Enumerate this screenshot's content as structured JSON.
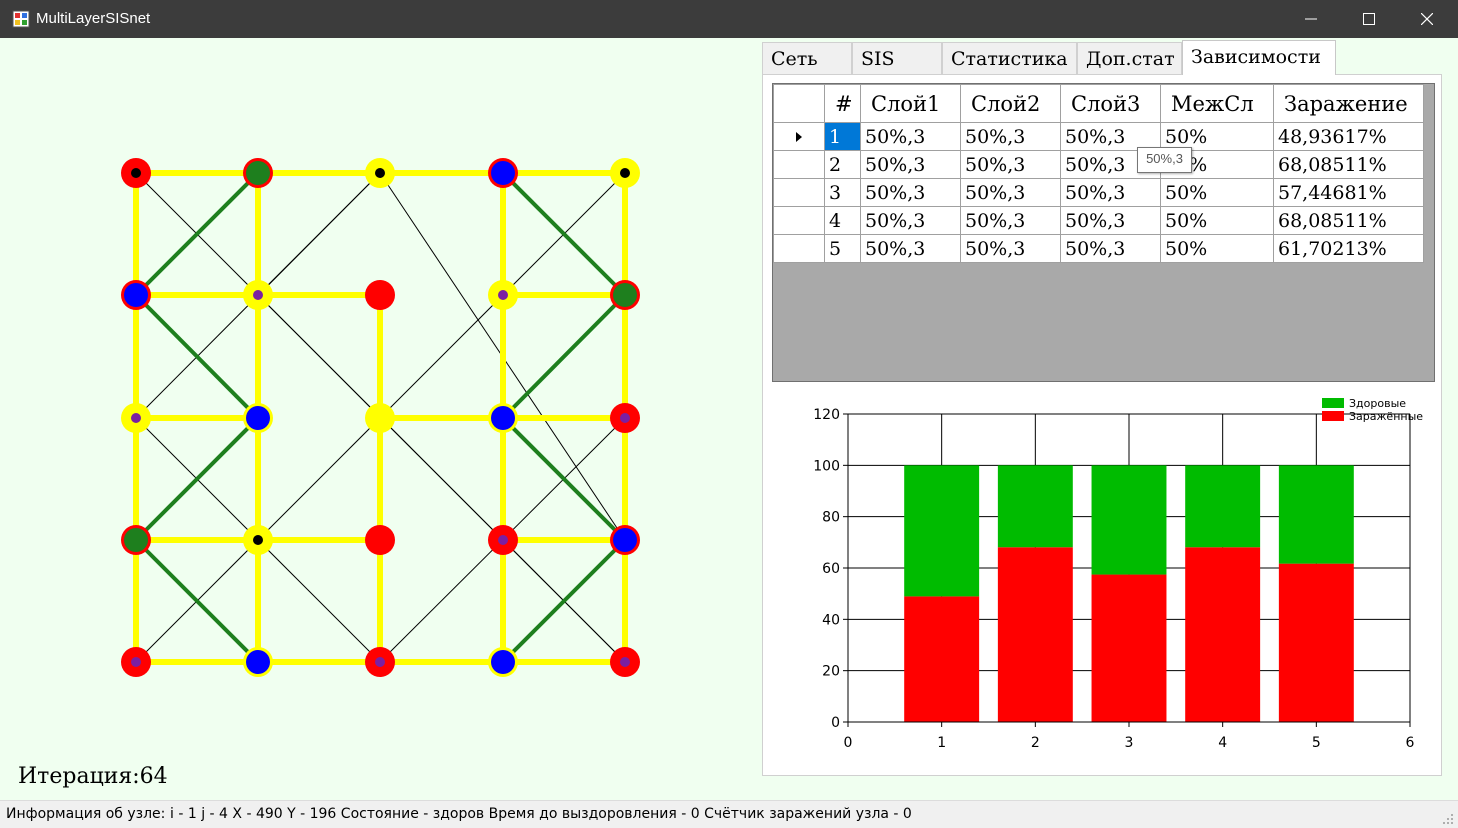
{
  "window": {
    "title": "MultiLayerSISnet"
  },
  "iteration": {
    "label": "Итерация:64"
  },
  "tabs": [
    {
      "label": "Сеть"
    },
    {
      "label": "SIS"
    },
    {
      "label": "Статистика"
    },
    {
      "label": "Доп.стат"
    },
    {
      "label": "Зависимости"
    }
  ],
  "active_tab": "Зависимости",
  "table": {
    "headers": [
      "#",
      "Слой1",
      "Слой2",
      "Слой3",
      "МежСл",
      "Заражение"
    ],
    "rows": [
      [
        "1",
        "50%,3",
        "50%,3",
        "50%,3",
        "50%",
        "48,93617%"
      ],
      [
        "2",
        "50%,3",
        "50%,3",
        "50%,3",
        "50%",
        "68,08511%"
      ],
      [
        "3",
        "50%,3",
        "50%,3",
        "50%,3",
        "50%",
        "57,44681%"
      ],
      [
        "4",
        "50%,3",
        "50%,3",
        "50%,3",
        "50%",
        "68,08511%"
      ],
      [
        "5",
        "50%,3",
        "50%,3",
        "50%,3",
        "50%",
        "61,70213%"
      ]
    ],
    "selected_row": 0
  },
  "tooltip": {
    "text": "50%,3"
  },
  "chart_data": {
    "type": "bar",
    "stacked": true,
    "x": [
      1,
      2,
      3,
      4,
      5
    ],
    "xlim": [
      0,
      6
    ],
    "ylim": [
      0,
      120
    ],
    "xticks": [
      0,
      1,
      2,
      3,
      4,
      5,
      6
    ],
    "yticks": [
      0,
      20,
      40,
      60,
      80,
      100,
      120
    ],
    "series": [
      {
        "name": "Здоровые",
        "color": "#00bb00",
        "values": [
          51.06383,
          31.91489,
          42.55319,
          31.91489,
          38.29787
        ]
      },
      {
        "name": "Заражённые",
        "color": "#ff0000",
        "values": [
          48.93617,
          68.08511,
          57.44681,
          68.08511,
          61.70213
        ]
      }
    ],
    "legend_position": "top-right",
    "grid": true
  },
  "network": {
    "colors": {
      "edge": "#ffff00",
      "interlayer": "#1e7f1e",
      "red": "#ff0000",
      "yellow": "#ffff00",
      "blue": "#0000ff",
      "green": "#1e7f1e",
      "purple": "#7b1fa2",
      "black": "#000000"
    },
    "nodes": [
      [
        "red",
        "black"
      ],
      [
        "red",
        "green"
      ],
      [
        "yellow",
        "black"
      ],
      [
        "red",
        "blue"
      ],
      [
        "yellow",
        "black"
      ],
      [
        "red",
        "blue"
      ],
      [
        "yellow",
        "purple"
      ],
      [
        "red",
        ""
      ],
      [
        "yellow",
        "purple"
      ],
      [
        "red",
        "green"
      ],
      [
        "yellow",
        "purple"
      ],
      [
        "yellow",
        "blue"
      ],
      [
        "yellow",
        ""
      ],
      [
        "yellow",
        "blue"
      ],
      [
        "red",
        "purple"
      ],
      [
        "red",
        "green"
      ],
      [
        "yellow",
        "black"
      ],
      [
        "red",
        ""
      ],
      [
        "red",
        "purple"
      ],
      [
        "red",
        "blue"
      ],
      [
        "red",
        "purple"
      ],
      [
        "yellow",
        "blue"
      ],
      [
        "red",
        "purple"
      ],
      [
        "yellow",
        "blue"
      ],
      [
        "red",
        "purple"
      ]
    ]
  },
  "status": {
    "label": "Информация об узле:",
    "text": "i - 1  j - 4  X - 490  Y - 196  Состояние - здоров  Время до выздоровления - 0  Счётчик заражений узла - 0"
  }
}
